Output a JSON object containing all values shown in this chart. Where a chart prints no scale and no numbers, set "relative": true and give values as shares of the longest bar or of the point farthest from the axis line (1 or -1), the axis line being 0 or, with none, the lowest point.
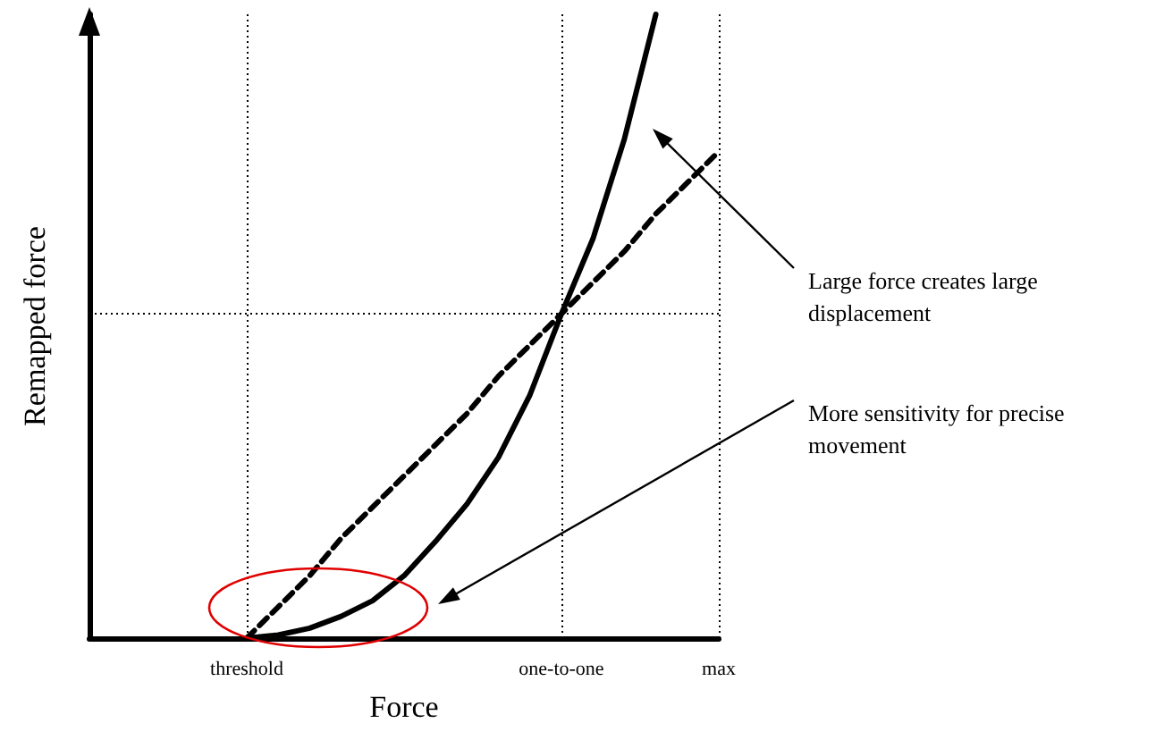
{
  "chart_data": {
    "type": "line",
    "xlabel": "Force",
    "ylabel": "Remapped force",
    "relative": true,
    "categories": [
      null,
      null,
      null,
      null,
      null,
      "threshold",
      null,
      null,
      null,
      null,
      null,
      null,
      null,
      null,
      null,
      "one-to-one",
      null,
      null,
      null,
      null,
      "max"
    ],
    "grid": "x",
    "marker": "none",
    "series": [
      {
        "color": "#000000",
        "line_style": "solid",
        "values": [
          null,
          null,
          null,
          null,
          null,
          0,
          0.005,
          0.016,
          0.035,
          0.06,
          0.1,
          0.155,
          0.215,
          0.29,
          0.39,
          0.52,
          0.64,
          0.8,
          1,
          null,
          null
        ]
      },
      {
        "color": "#000000",
        "line_style": "dashed",
        "values": [
          null,
          null,
          null,
          null,
          null,
          0,
          0.05,
          0.1,
          0.16,
          0.21,
          0.26,
          0.31,
          0.36,
          0.42,
          0.47,
          0.52,
          0.57,
          0.62,
          0.68,
          0.73,
          0.78
        ]
      }
    ],
    "ref_lines": [
      {
        "axis": "y",
        "value": 0.52,
        "line_style": "dotted",
        "color": "#000000"
      }
    ],
    "annotations": [
      "Large force creates large displacement",
      "More sensitivity for precise movement"
    ]
  }
}
